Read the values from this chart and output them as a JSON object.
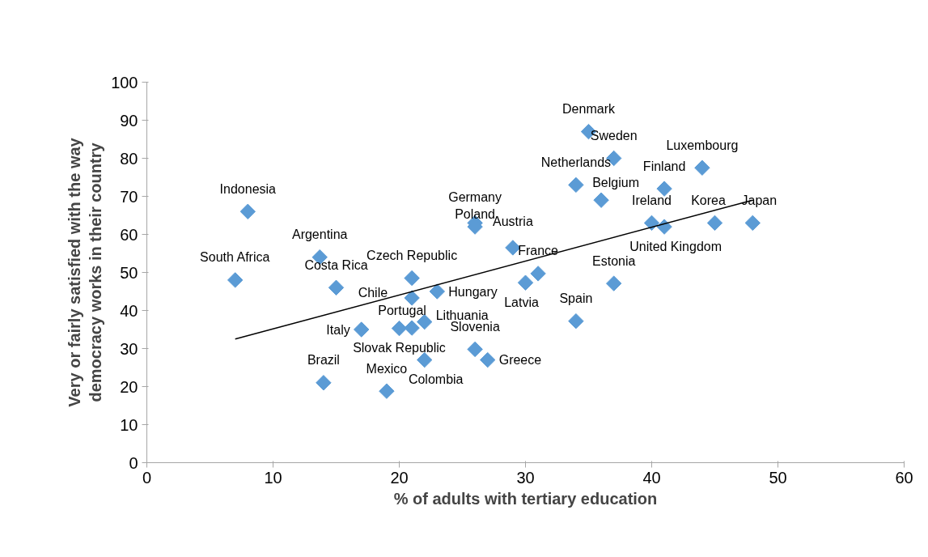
{
  "chart_data": {
    "type": "scatter",
    "xlabel": "% of adults with tertiary education",
    "ylabel": "Very or fairly satisfied with the way\ndemocracy works in their country",
    "xlim": [
      0,
      60
    ],
    "xticks": [
      0,
      10,
      20,
      30,
      40,
      50,
      60
    ],
    "ylim": [
      0,
      100
    ],
    "yticks": [
      0,
      10,
      20,
      30,
      40,
      50,
      60,
      70,
      80,
      90,
      100
    ],
    "grid": false,
    "series": [
      {
        "marker": "diamond",
        "color": "#5b9bd5",
        "x": [
          35,
          37,
          44,
          34,
          36,
          41,
          40,
          41,
          45,
          48,
          8,
          7,
          13.7,
          15,
          21,
          21,
          23,
          17,
          20,
          21,
          22,
          14,
          19,
          22,
          26,
          27,
          26,
          26,
          29,
          31,
          30,
          37,
          34
        ],
        "values": [
          87,
          80,
          77.5,
          73,
          69,
          72,
          63,
          62,
          63,
          63,
          66,
          48,
          54,
          46,
          48.5,
          43.3,
          45,
          35,
          35.3,
          35.4,
          37,
          21,
          18.8,
          27,
          29.8,
          27,
          63,
          62,
          56.5,
          49.7,
          47.3,
          47.1,
          37.2
        ]
      },
      {
        "type": "line",
        "color": "#000000",
        "x": [
          7,
          48
        ],
        "values": [
          32.5,
          69
        ]
      }
    ],
    "annotations": [
      {
        "text": "Denmark",
        "x": 35,
        "y": 87
      },
      {
        "text": "Sweden",
        "x": 37,
        "y": 80
      },
      {
        "text": "Luxembourg",
        "x": 44,
        "y": 77.5
      },
      {
        "text": "Netherlands",
        "x": 34,
        "y": 73
      },
      {
        "text": "Belgium",
        "x": 36,
        "y": 69
      },
      {
        "text": "Finland",
        "x": 41,
        "y": 72
      },
      {
        "text": "Ireland",
        "x": 40,
        "y": 63
      },
      {
        "text": "United Kingdom",
        "x": 41,
        "y": 62
      },
      {
        "text": "Korea",
        "x": 45,
        "y": 63
      },
      {
        "text": "Japan",
        "x": 48,
        "y": 63
      },
      {
        "text": "Indonesia",
        "x": 8,
        "y": 66
      },
      {
        "text": "South Africa",
        "x": 7,
        "y": 48
      },
      {
        "text": "Argentina",
        "x": 13.7,
        "y": 54
      },
      {
        "text": "Costa Rica",
        "x": 15,
        "y": 46
      },
      {
        "text": "Czech Republic",
        "x": 21,
        "y": 48.5
      },
      {
        "text": "Chile",
        "x": 21,
        "y": 43.3
      },
      {
        "text": "Hungary",
        "x": 23,
        "y": 45
      },
      {
        "text": "Italy",
        "x": 17,
        "y": 35
      },
      {
        "text": "Slovak Republic",
        "x": 20,
        "y": 35.3
      },
      {
        "text": "Portugal",
        "x": 21,
        "y": 35.4
      },
      {
        "text": "Lithuania",
        "x": 22,
        "y": 37
      },
      {
        "text": "Brazil",
        "x": 14,
        "y": 21
      },
      {
        "text": "Mexico",
        "x": 19,
        "y": 18.8
      },
      {
        "text": "Colombia",
        "x": 22,
        "y": 27
      },
      {
        "text": "Slovenia",
        "x": 26,
        "y": 29.8
      },
      {
        "text": "Greece",
        "x": 27,
        "y": 27
      },
      {
        "text": "Germany",
        "x": 26,
        "y": 63
      },
      {
        "text": "Poland",
        "x": 26,
        "y": 62
      },
      {
        "text": "Austria",
        "x": 29,
        "y": 56.5
      },
      {
        "text": "France",
        "x": 31,
        "y": 49.7
      },
      {
        "text": "Latvia",
        "x": 30,
        "y": 47.3
      },
      {
        "text": "Estonia",
        "x": 37,
        "y": 47.1
      },
      {
        "text": "Spain",
        "x": 34,
        "y": 37.2
      }
    ]
  }
}
